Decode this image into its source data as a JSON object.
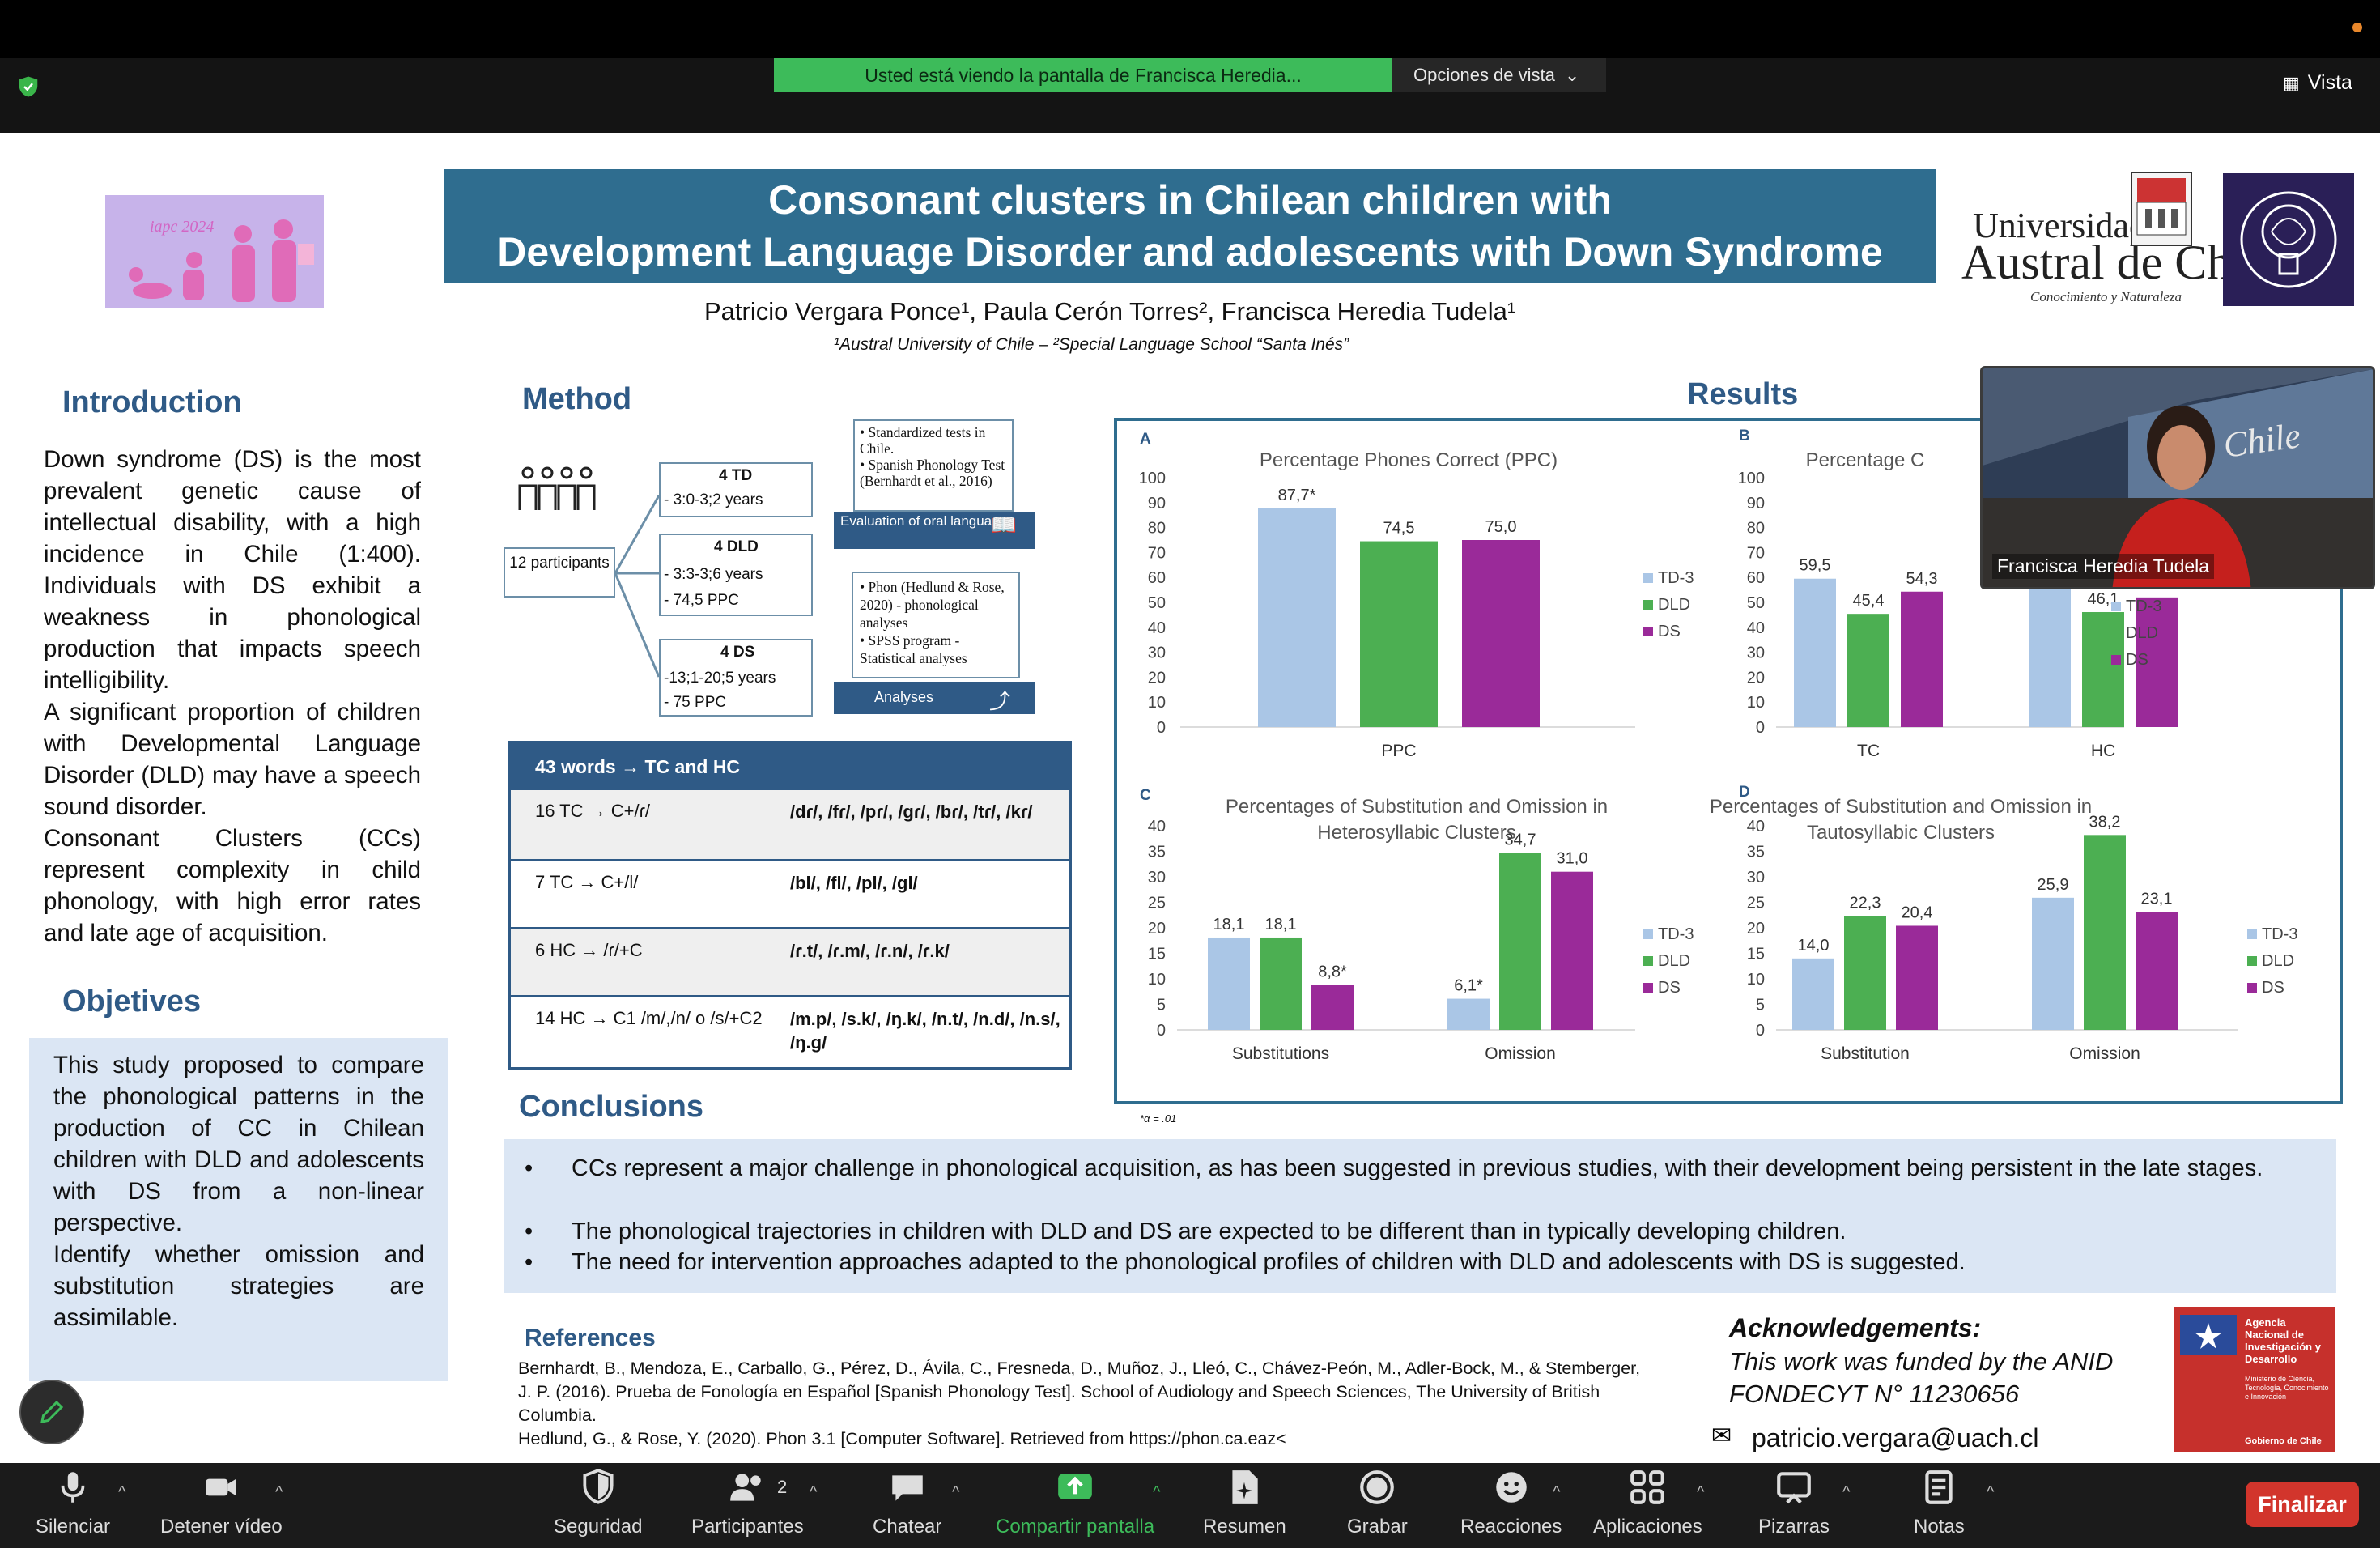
{
  "zoom": {
    "share_banner": "Usted está viendo la pantalla de Francisca Heredia...",
    "view_options": "Opciones de vista",
    "view_label": "Vista",
    "toolbar": {
      "mute": "Silenciar",
      "stop_video": "Detener vídeo",
      "security": "Seguridad",
      "participants": "Participantes",
      "participants_count": "2",
      "chat": "Chatear",
      "share_screen": "Compartir pantalla",
      "summary": "Resumen",
      "record": "Grabar",
      "reactions": "Reacciones",
      "apps": "Aplicaciones",
      "whiteboards": "Pizarras",
      "notes": "Notas",
      "end": "Finalizar"
    },
    "video_participant": "Francisca Heredia Tudela",
    "colors": {
      "share_green": "#3dbb5a",
      "end_red": "#d2352c"
    }
  },
  "poster": {
    "logo_text": "iapc 2024",
    "title_line1": "Consonant clusters in Chilean children with",
    "title_line2": "Development Language Disorder and adolescents with Down Syndrome",
    "authors": "Patricio Vergara Ponce¹, Paula Cerón Torres², Francisca Heredia Tudela¹",
    "affiliation": "¹Austral University of Chile – ²Special Language School “Santa Inés”",
    "university_line1": "Universidad",
    "university_line2": "Austral de Chile",
    "university_sub": "Conocimiento y Naturaleza",
    "introduction_heading": "Introduction",
    "introduction_text": "Down syndrome (DS) is the most prevalent genetic cause of intellectual disability, with a high incidence in Chile (1:400). Individuals with DS exhibit a weakness in phonological production that impacts speech intelligibility.",
    "introduction_text2": "A significant proportion of children with Developmental Language Disorder (DLD) may have a speech sound disorder.",
    "introduction_text3": "Consonant Clusters (CCs) represent complexity in child phonology, with high error rates and late age of acquisition.",
    "objectives_heading": "Objetives",
    "objectives_text1": "This study proposed to compare the phonological patterns in the production of CC in Chilean children with DLD and adolescents with DS from a non-linear perspective.",
    "objectives_text2": "Identify whether omission and substitution strategies are assimilable.",
    "method_heading": "Method",
    "method": {
      "participants": "12 participants",
      "group_td": "4 TD",
      "group_td_age": "- 3:0-3;2 years",
      "group_dld": "4 DLD",
      "group_dld_age": "- 3:3-3;6 years",
      "group_dld_ppc": "- 74,5 PPC",
      "group_ds": "4 DS",
      "group_ds_age": "-13;1-20;5 years",
      "group_ds_ppc": "- 75 PPC",
      "eval_items": "• Standardized tests in Chile.\n• Spanish Phonology Test (Bernhardt et al., 2016)",
      "eval_label": "Evaluation of oral language",
      "analysis_items": "• Phon (Hedlund & Rose, 2020) - phonological analyses\n• SPSS program - Statistical analyses",
      "analysis_label": "Analyses"
    },
    "table": {
      "header": "43 words → TC and HC",
      "rows": [
        {
          "left": "16 TC → C+/ɾ/",
          "right": "/dɾ/, /fɾ/, /pɾ/, /gɾ/, /bɾ/, /tɾ/, /kɾ/"
        },
        {
          "left": "7 TC → C+/l/",
          "right": "/bl/, /fl/, /pl/, /gl/"
        },
        {
          "left": "6 HC → /ɾ/+C",
          "right": "/ɾ.t/, /ɾ.m/, /ɾ.n/, /ɾ.k/"
        },
        {
          "left": "14 HC → C1 /m/,/n/ o /s/+C2",
          "right": "/m.p/, /s.k/, /ŋ.k/, /n.t/, /n.d/, /n.s/, /ŋ.g/"
        }
      ]
    },
    "results_heading": "Results",
    "conclusions_heading": "Conclusions",
    "conclusions": [
      "CCs represent a major challenge in phonological acquisition, as has been suggested in previous studies, with their development being persistent in the late stages.",
      "The phonological trajectories in children with DLD and DS are expected to be different than in typically developing children.",
      "The need for intervention approaches adapted to the phonological profiles of children with DLD and adolescents with DS is suggested."
    ],
    "references_heading": "References",
    "references": "Bernhardt, B., Mendoza, E., Carballo, G., Pérez, D., Ávila, C., Fresneda, D., Muñoz, J., Lleó, C., Chávez-Peón, M., Adler-Bock, M., & Stemberger, J. P. (2016). Prueba de Fonología en Español [Spanish Phonology Test]. School of Audiology and Speech Sciences, The University of British Columbia.",
    "references2": "Hedlund, G., & Rose, Y. (2020). Phon 3.1 [Computer Software]. Retrieved from https://phon.ca.eaz<",
    "ack_title": "Acknowledgements:",
    "ack_text": "This work was funded by the ANID FONDECYT N° 11230656",
    "email": "patricio.vergara@uach.cl",
    "anid_text": "Agencia Nacional de Investigación y Desarrollo",
    "anid_sub": "Ministerio de Ciencia, Tecnología, Conocimiento e Innovación",
    "anid_gob": "Gobierno de Chile",
    "footnote": "*α = .01"
  },
  "chart_data": [
    {
      "type": "bar",
      "panel": "A",
      "title": "Percentage Phones Correct (PPC)",
      "categories": [
        "PPC"
      ],
      "series": [
        {
          "name": "TD-3",
          "values": [
            87.7
          ],
          "labels": [
            "87,7*"
          ]
        },
        {
          "name": "DLD",
          "values": [
            74.5
          ],
          "labels": [
            "74,5"
          ]
        },
        {
          "name": "DS",
          "values": [
            75.0
          ],
          "labels": [
            "75,0"
          ]
        }
      ],
      "ylim": [
        0,
        100
      ],
      "yticks": [
        0,
        10,
        20,
        30,
        40,
        50,
        60,
        70,
        80,
        90,
        100
      ]
    },
    {
      "type": "bar",
      "panel": "B",
      "title": "Percentage C",
      "categories": [
        "TC",
        "HC"
      ],
      "series": [
        {
          "name": "TD-3",
          "values": [
            59.5,
            78
          ],
          "labels": [
            "59,5",
            ""
          ]
        },
        {
          "name": "DLD",
          "values": [
            45.4,
            46.1
          ],
          "labels": [
            "45,4",
            "46,1"
          ]
        },
        {
          "name": "DS",
          "values": [
            54.3,
            52
          ],
          "labels": [
            "54,3",
            ""
          ]
        }
      ],
      "ylim": [
        0,
        100
      ],
      "yticks": [
        0,
        10,
        20,
        30,
        40,
        50,
        60,
        70,
        80,
        90,
        100
      ]
    },
    {
      "type": "bar",
      "panel": "C",
      "title": "Percentages of Substitution and Omission in Heterosyllabic Clusters",
      "categories": [
        "Substitutions",
        "Omission"
      ],
      "series": [
        {
          "name": "TD-3",
          "values": [
            18.1,
            6.1
          ],
          "labels": [
            "18,1",
            "6,1*"
          ]
        },
        {
          "name": "DLD",
          "values": [
            18.1,
            34.7
          ],
          "labels": [
            "18,1",
            "34,7"
          ]
        },
        {
          "name": "DS",
          "values": [
            8.8,
            31.0
          ],
          "labels": [
            "8,8*",
            "31,0"
          ]
        }
      ],
      "ylim": [
        0,
        40
      ],
      "yticks": [
        0,
        5,
        10,
        15,
        20,
        25,
        30,
        35,
        40
      ]
    },
    {
      "type": "bar",
      "panel": "D",
      "title": "Percentages of Substitution and Omission in Tautosyllabic Clusters",
      "categories": [
        "Substitution",
        "Omission"
      ],
      "series": [
        {
          "name": "TD-3",
          "values": [
            14.0,
            25.9
          ],
          "labels": [
            "14,0",
            "25,9"
          ]
        },
        {
          "name": "DLD",
          "values": [
            22.3,
            38.2
          ],
          "labels": [
            "22,3",
            "38,2"
          ]
        },
        {
          "name": "DS",
          "values": [
            20.4,
            23.1
          ],
          "labels": [
            "20,4",
            "23,1"
          ]
        }
      ],
      "ylim": [
        0,
        40
      ],
      "yticks": [
        0,
        5,
        10,
        15,
        20,
        25,
        30,
        35,
        40
      ]
    }
  ],
  "series_colors": {
    "TD-3": "#aac6e6",
    "DLD": "#4caf52",
    "DS": "#9a2a99"
  }
}
